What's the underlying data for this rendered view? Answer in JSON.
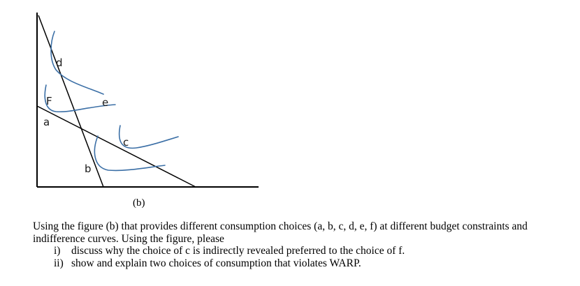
{
  "figure": {
    "caption": "(b)",
    "labels": {
      "d": "d",
      "f": "F",
      "e": "e",
      "a": "a",
      "c": "c",
      "b": "b"
    }
  },
  "question": {
    "intro": "Using the figure (b) that provides different consumption choices (a, b, c, d, e, f) at different budget constraints and indifference curves. Using the figure, please",
    "items": [
      {
        "marker": "i)",
        "text": "discuss why the choice of c is indirectly revealed preferred to the choice of f."
      },
      {
        "marker": "ii)",
        "text": "show and explain two choices of consumption that violates WARP."
      }
    ]
  }
}
